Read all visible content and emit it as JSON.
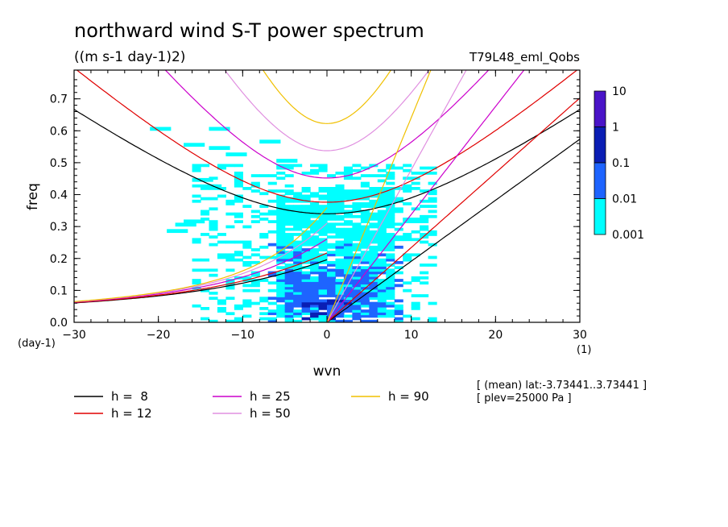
{
  "chart_data": {
    "type": "heatmap",
    "title": "northward wind S-T power spectrum",
    "subtitle": "((m s-1 day-1)2)",
    "run_label": "T79L48_eml_Qobs",
    "xlabel": "wvn",
    "ylabel": "freq",
    "x_unit": "(1)",
    "y_unit": "(day-1)",
    "xlim": [
      -30,
      30
    ],
    "ylim": [
      0,
      0.79
    ],
    "xticks": [
      -30,
      -20,
      -10,
      0,
      10,
      20,
      30
    ],
    "yticks": [
      0.0,
      0.1,
      0.2,
      0.3,
      0.4,
      0.5,
      0.6,
      0.7
    ],
    "colorbar": {
      "levels": [
        "10",
        "1",
        "0.1",
        "0.01",
        "0.001"
      ],
      "colors": [
        "#4a14c8",
        "#0a1eb4",
        "#1e64ff",
        "#00ffff"
      ]
    },
    "contour_regions": [
      {
        "level": 0.001,
        "x": [
          -16,
          13
        ],
        "y": [
          0.0,
          0.5
        ],
        "core_x": [
          -6,
          8
        ],
        "core_y": [
          0.02,
          0.42
        ]
      },
      {
        "level": 0.01,
        "x": [
          -7,
          9
        ],
        "y": [
          0.0,
          0.25
        ],
        "core_x": [
          -5,
          6
        ],
        "core_y": [
          0.02,
          0.16
        ]
      },
      {
        "level": 0.1,
        "x": [
          -3,
          3
        ],
        "y": [
          0.01,
          0.08
        ]
      }
    ],
    "dispersion_curves": [
      {
        "label": "h =  8",
        "color": "#000000"
      },
      {
        "label": "h = 12",
        "color": "#e00000"
      },
      {
        "label": "h = 25",
        "color": "#cc00cc"
      },
      {
        "label": "h = 50",
        "color": "#e090e0"
      },
      {
        "label": "h = 90",
        "color": "#f0c000"
      }
    ],
    "annotations": [
      "[ (mean) lat:-3.73441..3.73441 ]",
      "[ plev=25000 Pa ]"
    ]
  }
}
